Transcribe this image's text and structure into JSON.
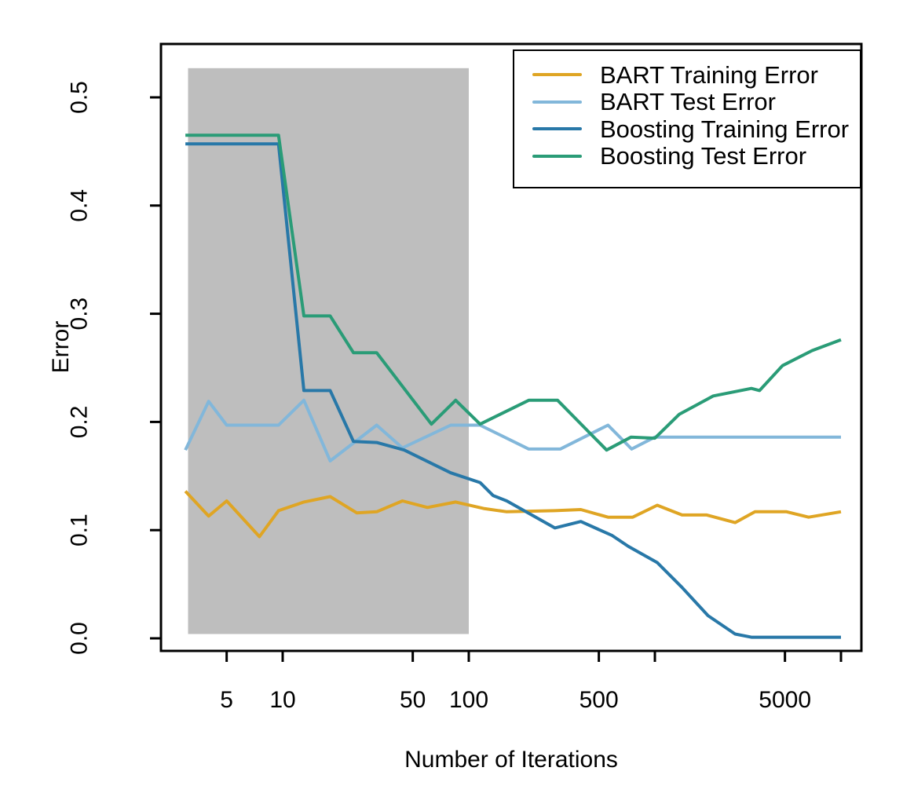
{
  "chart_data": {
    "type": "line",
    "title": "",
    "xlabel": "Number of Iterations",
    "ylabel": "Error",
    "x_scale": "log10",
    "xlim": [
      2.3,
      12500
    ],
    "ylim": [
      -0.012,
      0.55
    ],
    "grid": false,
    "legend_position": "top-right",
    "x_ticks": [
      {
        "value": 5,
        "label": "5"
      },
      {
        "value": 10,
        "label": "10"
      },
      {
        "value": 50,
        "label": "50"
      },
      {
        "value": 100,
        "label": "100"
      },
      {
        "value": 500,
        "label": "500"
      },
      {
        "value": 1000,
        "label": ""
      },
      {
        "value": 5000,
        "label": "5000"
      },
      {
        "value": 10000,
        "label": ""
      }
    ],
    "y_ticks": [
      {
        "value": 0.0,
        "label": "0.0"
      },
      {
        "value": 0.1,
        "label": "0.1"
      },
      {
        "value": 0.2,
        "label": "0.2"
      },
      {
        "value": 0.3,
        "label": "0.3"
      },
      {
        "value": 0.4,
        "label": "0.4"
      },
      {
        "value": 0.5,
        "label": "0.5"
      }
    ],
    "shaded_region": {
      "x_from": 3.1,
      "x_to": 100,
      "y_from": 0.004,
      "y_to": 0.527,
      "color": "#BEBEBE"
    },
    "series": [
      {
        "name": "BART Training Error",
        "color": "#DFA524",
        "points": [
          [
            3,
            0.136
          ],
          [
            4,
            0.113
          ],
          [
            5,
            0.127
          ],
          [
            7.5,
            0.094
          ],
          [
            9.5,
            0.118
          ],
          [
            13,
            0.126
          ],
          [
            18,
            0.131
          ],
          [
            25,
            0.116
          ],
          [
            32,
            0.117
          ],
          [
            44,
            0.127
          ],
          [
            60,
            0.121
          ],
          [
            85,
            0.126
          ],
          [
            120,
            0.12
          ],
          [
            160,
            0.117
          ],
          [
            290,
            0.118
          ],
          [
            400,
            0.119
          ],
          [
            560,
            0.112
          ],
          [
            760,
            0.112
          ],
          [
            1030,
            0.123
          ],
          [
            1400,
            0.114
          ],
          [
            1900,
            0.114
          ],
          [
            2700,
            0.107
          ],
          [
            3450,
            0.117
          ],
          [
            5100,
            0.117
          ],
          [
            6700,
            0.112
          ],
          [
            10000,
            0.117
          ]
        ]
      },
      {
        "name": "BART Test Error",
        "color": "#82B7DA",
        "points": [
          [
            3,
            0.174
          ],
          [
            4,
            0.219
          ],
          [
            5,
            0.197
          ],
          [
            9.5,
            0.197
          ],
          [
            13,
            0.22
          ],
          [
            18,
            0.164
          ],
          [
            32,
            0.197
          ],
          [
            44,
            0.176
          ],
          [
            80,
            0.197
          ],
          [
            115,
            0.197
          ],
          [
            210,
            0.175
          ],
          [
            310,
            0.175
          ],
          [
            560,
            0.197
          ],
          [
            750,
            0.175
          ],
          [
            1000,
            0.186
          ],
          [
            10000,
            0.186
          ]
        ]
      },
      {
        "name": "Boosting Training Error",
        "color": "#2878A8",
        "points": [
          [
            3,
            0.457
          ],
          [
            9.5,
            0.457
          ],
          [
            13,
            0.229
          ],
          [
            18,
            0.229
          ],
          [
            24,
            0.182
          ],
          [
            32,
            0.181
          ],
          [
            45,
            0.174
          ],
          [
            80,
            0.153
          ],
          [
            115,
            0.144
          ],
          [
            135,
            0.132
          ],
          [
            160,
            0.127
          ],
          [
            290,
            0.102
          ],
          [
            400,
            0.108
          ],
          [
            590,
            0.095
          ],
          [
            720,
            0.085
          ],
          [
            1030,
            0.07
          ],
          [
            1400,
            0.047
          ],
          [
            1930,
            0.021
          ],
          [
            2700,
            0.004
          ],
          [
            3300,
            0.001
          ],
          [
            10000,
            0.001
          ]
        ]
      },
      {
        "name": "Boosting Test Error",
        "color": "#2A9C77",
        "points": [
          [
            3,
            0.465
          ],
          [
            9.5,
            0.465
          ],
          [
            13,
            0.298
          ],
          [
            18,
            0.298
          ],
          [
            24,
            0.264
          ],
          [
            32,
            0.264
          ],
          [
            63,
            0.198
          ],
          [
            85,
            0.22
          ],
          [
            115,
            0.198
          ],
          [
            210,
            0.22
          ],
          [
            300,
            0.22
          ],
          [
            550,
            0.174
          ],
          [
            745,
            0.186
          ],
          [
            1000,
            0.185
          ],
          [
            1350,
            0.207
          ],
          [
            2060,
            0.224
          ],
          [
            3300,
            0.231
          ],
          [
            3650,
            0.229
          ],
          [
            4850,
            0.252
          ],
          [
            7000,
            0.266
          ],
          [
            10000,
            0.276
          ]
        ]
      }
    ]
  }
}
